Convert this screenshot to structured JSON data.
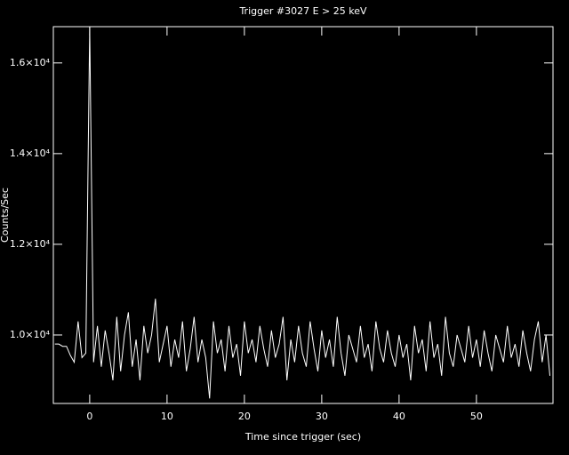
{
  "chart_data": {
    "type": "line",
    "title": "Trigger #3027 E > 25 keV",
    "x_label": "Time since trigger (sec)",
    "y_label": "Counts/Sec",
    "color": "#ffffff",
    "xlim": [
      -4.7,
      59.9
    ],
    "ylim": [
      8490,
      16800
    ],
    "xticks": [
      0,
      10,
      20,
      30,
      40,
      50
    ],
    "yticks": [
      {
        "value": 10000,
        "label": "1.0×10⁴"
      },
      {
        "value": 12000,
        "label": "1.2×10⁴"
      },
      {
        "value": 14000,
        "label": "1.4×10⁴"
      },
      {
        "value": 16000,
        "label": "1.6×10⁴"
      }
    ],
    "x": [
      -4.5,
      -4,
      -3.5,
      -3,
      -2.5,
      -2,
      -1.5,
      -1,
      -0.5,
      0,
      0.5,
      1,
      1.5,
      2,
      2.5,
      3,
      3.5,
      4,
      4.5,
      5,
      5.5,
      6,
      6.5,
      7,
      7.5,
      8,
      8.5,
      9,
      9.5,
      10,
      10.5,
      11,
      11.5,
      12,
      12.5,
      13,
      13.5,
      14,
      14.5,
      15,
      15.5,
      16,
      16.5,
      17,
      17.5,
      18,
      18.5,
      19,
      19.5,
      20,
      20.5,
      21,
      21.5,
      22,
      22.5,
      23,
      23.5,
      24,
      24.5,
      25,
      25.5,
      26,
      26.5,
      27,
      27.5,
      28,
      28.5,
      29,
      29.5,
      30,
      30.5,
      31,
      31.5,
      32,
      32.5,
      33,
      33.5,
      34,
      34.5,
      35,
      35.5,
      36,
      36.5,
      37,
      37.5,
      38,
      38.5,
      39,
      39.5,
      40,
      40.5,
      41,
      41.5,
      42,
      42.5,
      43,
      43.5,
      44,
      44.5,
      45,
      45.5,
      46,
      46.5,
      47,
      47.5,
      48,
      48.5,
      49,
      49.5,
      50,
      50.5,
      51,
      51.5,
      52,
      52.5,
      53,
      53.5,
      54,
      54.5,
      55,
      55.5,
      56,
      56.5,
      57,
      57.5,
      58,
      58.5,
      59,
      59.5
    ],
    "values": [
      9800,
      9800,
      9750,
      9750,
      9550,
      9400,
      10300,
      9500,
      9600,
      16800,
      9400,
      10200,
      9300,
      10100,
      9600,
      9000,
      10400,
      9200,
      10000,
      10500,
      9300,
      9900,
      9000,
      10200,
      9600,
      10000,
      10800,
      9400,
      9800,
      10200,
      9300,
      9900,
      9500,
      10300,
      9200,
      9700,
      10400,
      9400,
      9900,
      9500,
      8600,
      10300,
      9600,
      9900,
      9200,
      10200,
      9500,
      9800,
      9100,
      10300,
      9600,
      9900,
      9400,
      10200,
      9700,
      9300,
      10100,
      9500,
      9800,
      10400,
      9000,
      9900,
      9400,
      10200,
      9600,
      9300,
      10300,
      9700,
      9200,
      10100,
      9500,
      9900,
      9300,
      10400,
      9600,
      9100,
      10000,
      9700,
      9400,
      10200,
      9500,
      9800,
      9200,
      10300,
      9700,
      9400,
      10100,
      9600,
      9300,
      10000,
      9500,
      9800,
      9000,
      10200,
      9600,
      9900,
      9200,
      10300,
      9500,
      9800,
      9100,
      10400,
      9600,
      9300,
      10000,
      9700,
      9400,
      10200,
      9500,
      9900,
      9300,
      10100,
      9600,
      9200,
      10000,
      9700,
      9400,
      10200,
      9500,
      9800,
      9300,
      10100,
      9600,
      9200,
      9900,
      10300,
      9400,
      10000,
      9100
    ]
  }
}
